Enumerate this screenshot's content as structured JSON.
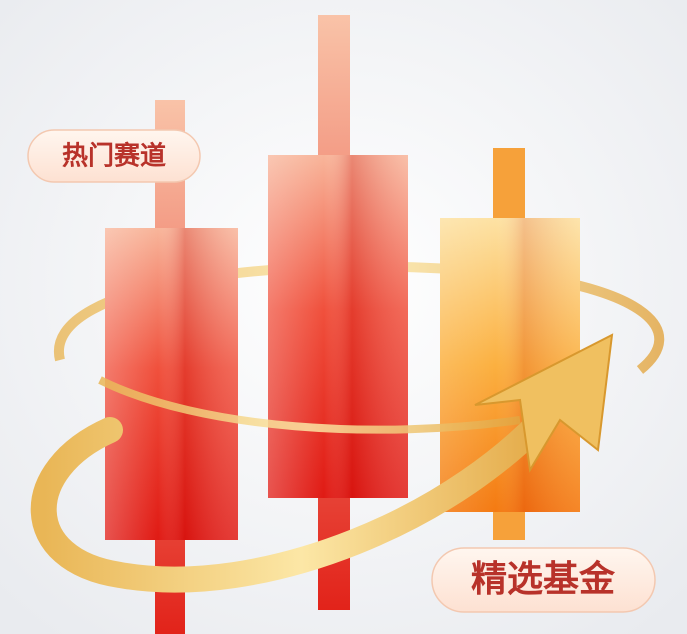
{
  "labels": {
    "top": "热门赛道",
    "bottom": "精选基金"
  }
}
